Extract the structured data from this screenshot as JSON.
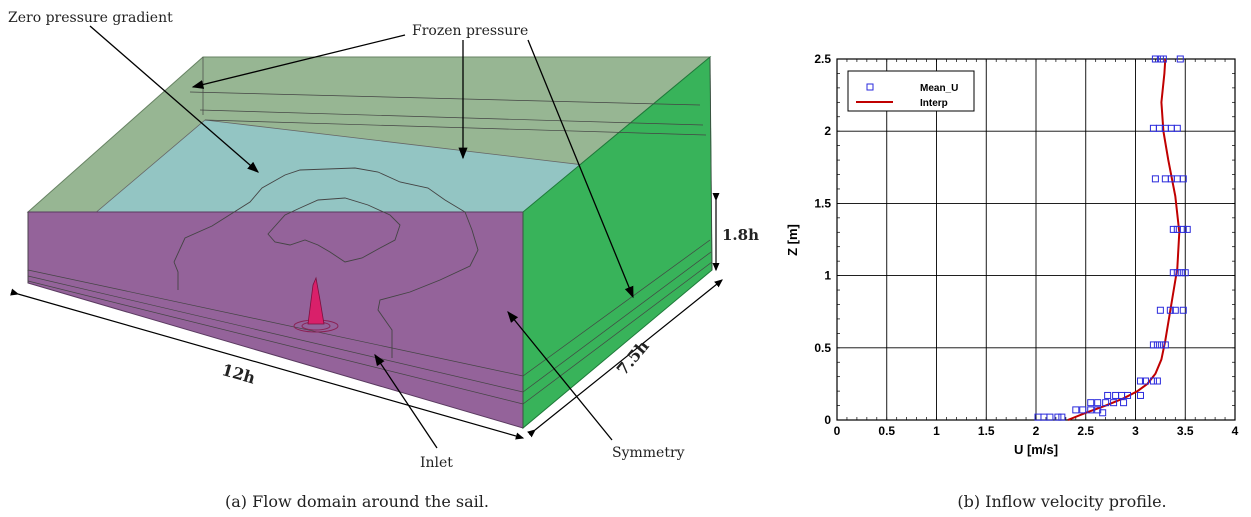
{
  "figure_a": {
    "labels": {
      "zero_pressure": "Zero pressure gradient",
      "frozen_pressure": "Frozen pressure",
      "height": "1.8h",
      "width": "7.5h",
      "length": "12h",
      "inlet": "Inlet",
      "symmetry": "Symmetry"
    },
    "caption": "(a)  Flow domain around the sail."
  },
  "figure_b": {
    "caption": "(b)  Inflow velocity profile."
  },
  "colors": {
    "top_face": "#92b38e",
    "inner_face": "#93c5c3",
    "front_face": "#94639a",
    "side_face": "#38b35a",
    "sail": "#d9206a",
    "interp_line": "#c00000",
    "marker": "#2a2adc"
  },
  "chart_data": {
    "type": "scatter",
    "title": "",
    "xlabel": "U [m/s]",
    "ylabel": "Z [m]",
    "xlim": [
      0,
      4
    ],
    "ylim": [
      0,
      2.5
    ],
    "xticks": [
      "0",
      "0.5",
      "1",
      "1.5",
      "2",
      "2.5",
      "3",
      "3.5",
      "4"
    ],
    "yticks": [
      "0",
      "0.5",
      "1",
      "1.5",
      "2",
      "2.5"
    ],
    "grid": true,
    "legend_position": "top-left",
    "series": [
      {
        "name": "Mean_U",
        "kind": "markers",
        "points": [
          [
            2.02,
            0.02
          ],
          [
            2.08,
            0.02
          ],
          [
            2.14,
            0.02
          ],
          [
            2.22,
            0.02
          ],
          [
            2.26,
            0.02
          ],
          [
            2.4,
            0.07
          ],
          [
            2.47,
            0.07
          ],
          [
            2.55,
            0.07
          ],
          [
            2.62,
            0.07
          ],
          [
            2.67,
            0.05
          ],
          [
            2.55,
            0.12
          ],
          [
            2.62,
            0.12
          ],
          [
            2.7,
            0.12
          ],
          [
            2.78,
            0.12
          ],
          [
            2.88,
            0.12
          ],
          [
            2.72,
            0.17
          ],
          [
            2.8,
            0.17
          ],
          [
            2.86,
            0.17
          ],
          [
            2.92,
            0.17
          ],
          [
            3.05,
            0.17
          ],
          [
            3.05,
            0.27
          ],
          [
            3.1,
            0.27
          ],
          [
            3.18,
            0.27
          ],
          [
            3.22,
            0.27
          ],
          [
            3.18,
            0.52
          ],
          [
            3.22,
            0.52
          ],
          [
            3.26,
            0.52
          ],
          [
            3.3,
            0.52
          ],
          [
            3.25,
            0.76
          ],
          [
            3.35,
            0.76
          ],
          [
            3.4,
            0.76
          ],
          [
            3.48,
            0.76
          ],
          [
            3.38,
            1.02
          ],
          [
            3.42,
            1.02
          ],
          [
            3.46,
            1.02
          ],
          [
            3.5,
            1.02
          ],
          [
            3.38,
            1.32
          ],
          [
            3.42,
            1.32
          ],
          [
            3.48,
            1.32
          ],
          [
            3.52,
            1.32
          ],
          [
            3.2,
            1.67
          ],
          [
            3.3,
            1.67
          ],
          [
            3.36,
            1.67
          ],
          [
            3.42,
            1.67
          ],
          [
            3.48,
            1.67
          ],
          [
            3.18,
            2.02
          ],
          [
            3.24,
            2.02
          ],
          [
            3.3,
            2.02
          ],
          [
            3.36,
            2.02
          ],
          [
            3.42,
            2.02
          ],
          [
            3.2,
            2.5
          ],
          [
            3.25,
            2.5
          ],
          [
            3.28,
            2.5
          ],
          [
            3.45,
            2.5
          ]
        ]
      },
      {
        "name": "Interp",
        "kind": "line",
        "points": [
          [
            2.32,
            0.0
          ],
          [
            2.5,
            0.05
          ],
          [
            2.7,
            0.1
          ],
          [
            2.88,
            0.15
          ],
          [
            3.02,
            0.2
          ],
          [
            3.12,
            0.25
          ],
          [
            3.2,
            0.32
          ],
          [
            3.26,
            0.42
          ],
          [
            3.3,
            0.55
          ],
          [
            3.36,
            0.8
          ],
          [
            3.42,
            1.05
          ],
          [
            3.44,
            1.3
          ],
          [
            3.4,
            1.55
          ],
          [
            3.33,
            1.8
          ],
          [
            3.28,
            2.0
          ],
          [
            3.26,
            2.2
          ],
          [
            3.29,
            2.4
          ],
          [
            3.3,
            2.5
          ]
        ]
      }
    ]
  }
}
